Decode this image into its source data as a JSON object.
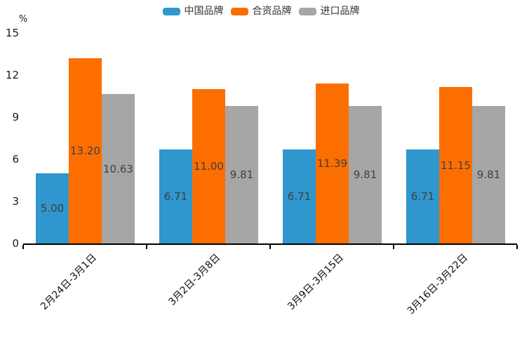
{
  "chart_data": {
    "type": "bar",
    "title": "",
    "unit_label": "%",
    "categories": [
      "2月24日-3月1日",
      "3月2日-3月8日",
      "3月9日-3月15日",
      "3月16日-3月22日"
    ],
    "series": [
      {
        "name": "中国品牌",
        "color": "#2F96CE",
        "values": [
          5.0,
          6.71,
          6.71,
          6.71
        ]
      },
      {
        "name": "合资品牌",
        "color": "#FC6E00",
        "values": [
          13.2,
          11.0,
          11.39,
          11.15
        ]
      },
      {
        "name": "进口品牌",
        "color": "#A6A6A6",
        "values": [
          10.63,
          9.81,
          9.81,
          9.81
        ]
      }
    ],
    "value_label_decimals": 2,
    "ylim": [
      0,
      15
    ],
    "yticks": [
      0,
      3,
      6,
      9,
      12,
      15
    ],
    "grid": false,
    "legend_position": "top",
    "axis_color": "#000000",
    "value_label_color": "#404040",
    "tick_label_color": "#1a1a1a"
  }
}
